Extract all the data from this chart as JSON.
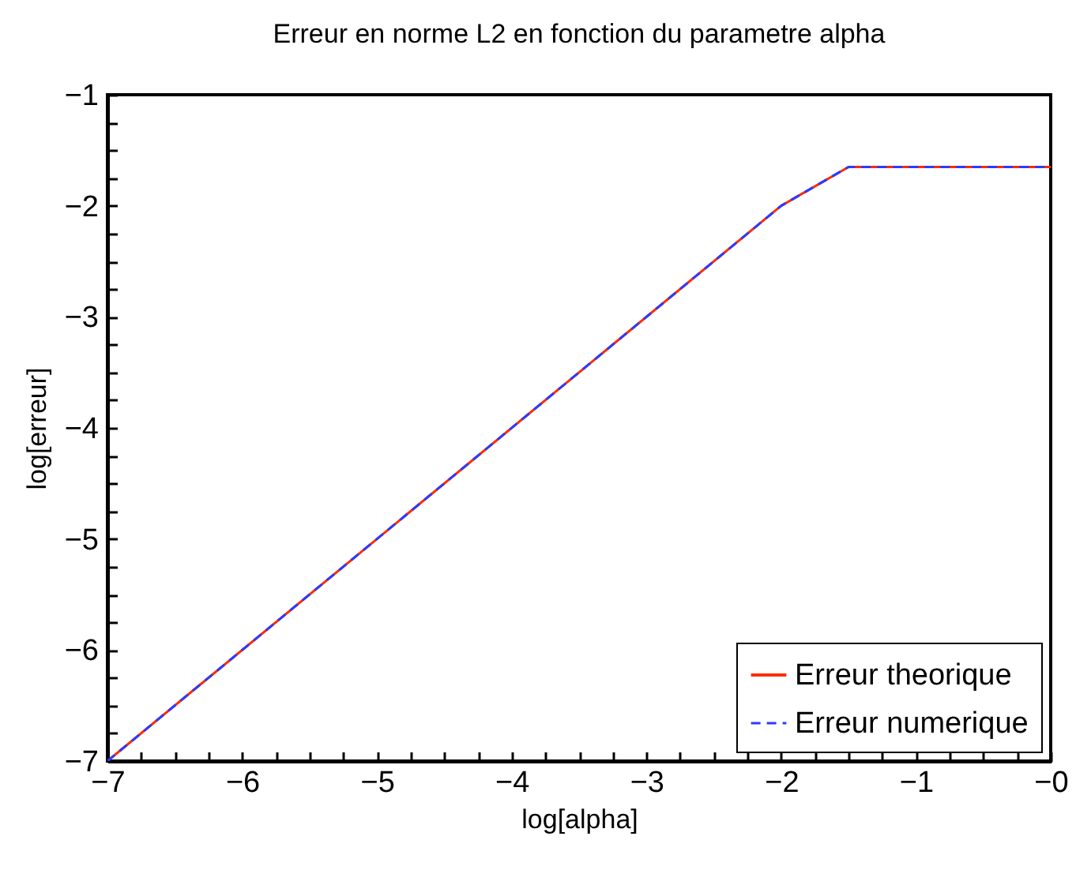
{
  "chart_data": {
    "type": "line",
    "title": "Erreur en norme L2 en fonction du parametre alpha",
    "xlabel": "log[alpha]",
    "ylabel": "log[erreur]",
    "x": [
      -7,
      -2,
      -1.5,
      0
    ],
    "series": [
      {
        "name": "Erreur theorique",
        "color": "#ff2a00",
        "line_style": "solid",
        "values": [
          -7,
          -2,
          -1.65,
          -1.65
        ]
      },
      {
        "name": "Erreur numerique",
        "color": "#2a3cff",
        "line_style": "dashed",
        "values": [
          -7,
          -2,
          -1.65,
          -1.65
        ]
      }
    ],
    "xlim": [
      -7,
      0
    ],
    "ylim": [
      -7,
      -1
    ],
    "xticks": [
      {
        "value": -7,
        "label": "−7"
      },
      {
        "value": -6.75,
        "label": null
      },
      {
        "value": -6.5,
        "label": null
      },
      {
        "value": -6.25,
        "label": null
      },
      {
        "value": -6,
        "label": "−6"
      },
      {
        "value": -5.75,
        "label": null
      },
      {
        "value": -5.5,
        "label": null
      },
      {
        "value": -5.25,
        "label": null
      },
      {
        "value": -5,
        "label": "−5"
      },
      {
        "value": -4.75,
        "label": null
      },
      {
        "value": -4.5,
        "label": null
      },
      {
        "value": -4.25,
        "label": null
      },
      {
        "value": -4,
        "label": "−4"
      },
      {
        "value": -3.75,
        "label": null
      },
      {
        "value": -3.5,
        "label": null
      },
      {
        "value": -3.25,
        "label": null
      },
      {
        "value": -3,
        "label": "−3"
      },
      {
        "value": -2.75,
        "label": null
      },
      {
        "value": -2.5,
        "label": null
      },
      {
        "value": -2.25,
        "label": null
      },
      {
        "value": -2,
        "label": "−2"
      },
      {
        "value": -1.75,
        "label": null
      },
      {
        "value": -1.5,
        "label": null
      },
      {
        "value": -1.25,
        "label": null
      },
      {
        "value": -1,
        "label": "−1"
      },
      {
        "value": -0.75,
        "label": null
      },
      {
        "value": -0.5,
        "label": null
      },
      {
        "value": -0.25,
        "label": null
      },
      {
        "value": 0,
        "label": "−0"
      }
    ],
    "yticks": [
      {
        "value": -7,
        "label": "−7"
      },
      {
        "value": -6.75,
        "label": null
      },
      {
        "value": -6.5,
        "label": null
      },
      {
        "value": -6.25,
        "label": null
      },
      {
        "value": -6,
        "label": "−6"
      },
      {
        "value": -5.75,
        "label": null
      },
      {
        "value": -5.5,
        "label": null
      },
      {
        "value": -5.25,
        "label": null
      },
      {
        "value": -5,
        "label": "−5"
      },
      {
        "value": -4.75,
        "label": null
      },
      {
        "value": -4.5,
        "label": null
      },
      {
        "value": -4.25,
        "label": null
      },
      {
        "value": -4,
        "label": "−4"
      },
      {
        "value": -3.75,
        "label": null
      },
      {
        "value": -3.5,
        "label": null
      },
      {
        "value": -3.25,
        "label": null
      },
      {
        "value": -3,
        "label": "−3"
      },
      {
        "value": -2.75,
        "label": null
      },
      {
        "value": -2.5,
        "label": null
      },
      {
        "value": -2.25,
        "label": null
      },
      {
        "value": -2,
        "label": "−2"
      },
      {
        "value": -1.75,
        "label": null
      },
      {
        "value": -1.5,
        "label": null
      },
      {
        "value": -1.25,
        "label": null
      },
      {
        "value": -1,
        "label": "−1"
      }
    ],
    "grid": false,
    "legend": "bottom right",
    "marker": "none"
  }
}
